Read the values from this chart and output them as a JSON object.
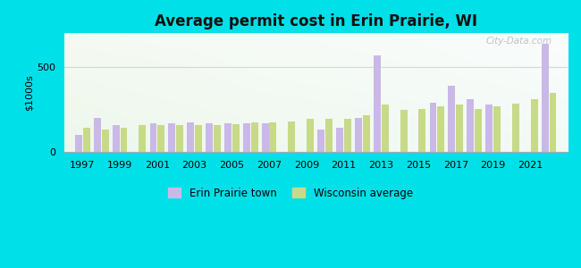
{
  "title": "Average permit cost in Erin Prairie, WI",
  "ylabel": "$1000s",
  "outer_bg": "#00e0e8",
  "bar_color_erin": "#c9b8e8",
  "bar_color_wi": "#c8d988",
  "years": [
    1997,
    1998,
    1999,
    2000,
    2001,
    2002,
    2003,
    2004,
    2005,
    2006,
    2007,
    2008,
    2009,
    2010,
    2011,
    2012,
    2013,
    2014,
    2015,
    2016,
    2017,
    2018,
    2019,
    2020,
    2021,
    2022
  ],
  "erin_values": [
    100,
    200,
    160,
    0,
    170,
    170,
    175,
    170,
    170,
    170,
    170,
    0,
    0,
    130,
    140,
    200,
    570,
    0,
    0,
    290,
    390,
    310,
    280,
    0,
    0,
    640
  ],
  "wi_values": [
    140,
    130,
    140,
    155,
    155,
    155,
    155,
    160,
    165,
    175,
    175,
    180,
    195,
    195,
    195,
    215,
    280,
    250,
    255,
    270,
    280,
    255,
    270,
    285,
    310,
    350
  ],
  "ylim": [
    0,
    700
  ],
  "yticks": [
    0,
    500
  ],
  "xticks": [
    1997,
    1999,
    2001,
    2003,
    2005,
    2007,
    2009,
    2011,
    2013,
    2015,
    2017,
    2019,
    2021
  ],
  "legend_labels": [
    "Erin Prairie town",
    "Wisconsin average"
  ],
  "watermark": "City-Data.com",
  "bg_left_bottom": "#b2e8c8",
  "bg_right_top": "#f0fff8"
}
